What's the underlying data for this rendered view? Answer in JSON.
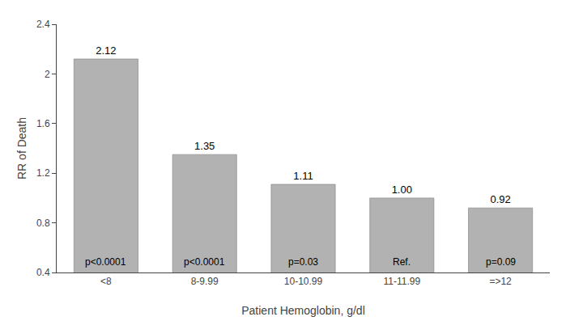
{
  "chart_data": {
    "type": "bar",
    "categories": [
      "<8",
      "8-9.99",
      "10-10.99",
      "11-11.99",
      "=>12"
    ],
    "values": [
      2.12,
      1.35,
      1.11,
      1.0,
      0.92
    ],
    "value_labels": [
      "2.12",
      "1.35",
      "1.11",
      "1.00",
      "0.92"
    ],
    "data_labels": true,
    "annotations": [
      "p<0.0001",
      "p<0.0001",
      "p=0.03",
      "Ref.",
      "p=0.09"
    ],
    "color": "#b2b2b2",
    "xlabel": "Patient Hemoglobin, g/dl",
    "ylabel": "RR of Death",
    "ylim": [
      0.4,
      2.4
    ],
    "yticks": [
      0.4,
      0.8,
      1.2,
      1.6,
      2,
      2.4
    ],
    "grid": false
  }
}
